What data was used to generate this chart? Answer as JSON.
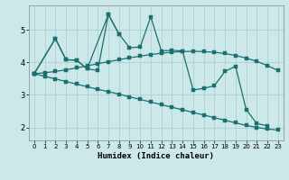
{
  "background_color": "#cce8e8",
  "grid_color": "#aacccc",
  "line_color": "#1a7070",
  "xlabel": "Humidex (Indice chaleur)",
  "xlim": [
    -0.5,
    23.5
  ],
  "ylim": [
    1.6,
    5.75
  ],
  "yticks": [
    2,
    3,
    4,
    5
  ],
  "xticks": [
    0,
    1,
    2,
    3,
    4,
    5,
    6,
    7,
    8,
    9,
    10,
    11,
    12,
    13,
    14,
    15,
    16,
    17,
    18,
    19,
    20,
    21,
    22,
    23
  ],
  "line_flat_x": [
    0,
    1,
    2,
    3,
    4,
    5,
    6,
    7,
    8,
    9,
    10,
    11,
    12,
    13,
    14,
    15,
    16,
    17,
    18,
    19,
    20,
    21,
    22,
    23
  ],
  "line_flat_y": [
    3.65,
    3.68,
    3.72,
    3.77,
    3.83,
    3.89,
    3.96,
    4.02,
    4.08,
    4.14,
    4.19,
    4.24,
    4.28,
    4.31,
    4.33,
    4.34,
    4.33,
    4.31,
    4.27,
    4.21,
    4.13,
    4.03,
    3.9,
    3.75
  ],
  "line_steep_x": [
    0,
    1,
    2,
    3,
    4,
    5,
    6,
    7,
    8,
    9,
    10,
    11,
    12,
    13,
    14,
    15,
    16,
    17,
    18,
    19,
    20,
    21,
    22,
    23
  ],
  "line_steep_y": [
    3.65,
    3.57,
    3.49,
    3.41,
    3.33,
    3.25,
    3.17,
    3.1,
    3.02,
    2.94,
    2.86,
    2.78,
    2.7,
    2.62,
    2.54,
    2.46,
    2.38,
    2.3,
    2.22,
    2.14,
    2.06,
    2.0,
    1.95,
    1.92
  ],
  "zigzag1_x": [
    0,
    2,
    3,
    4,
    5,
    6,
    7,
    8,
    9,
    10,
    11,
    12,
    13,
    14,
    15,
    16,
    17,
    18,
    19,
    20,
    21,
    22
  ],
  "zigzag1_y": [
    3.65,
    4.73,
    4.08,
    4.07,
    3.8,
    3.75,
    5.47,
    4.87,
    4.45,
    4.47,
    5.4,
    4.35,
    4.37,
    4.35,
    3.15,
    3.2,
    3.28,
    3.72,
    3.88,
    2.55,
    2.12,
    2.05
  ],
  "zigzag2_x": [
    0,
    2,
    3,
    4,
    5,
    7,
    8
  ],
  "zigzag2_y": [
    3.65,
    4.73,
    4.08,
    4.06,
    3.8,
    5.47,
    4.87
  ]
}
